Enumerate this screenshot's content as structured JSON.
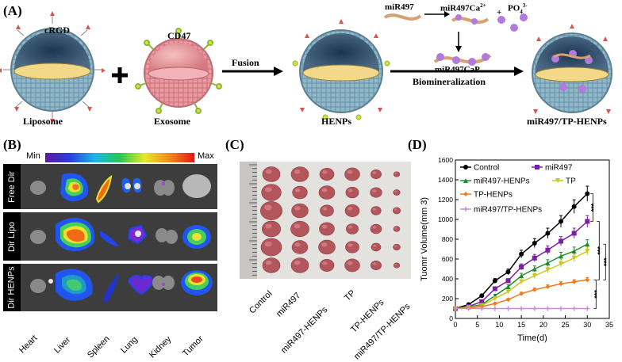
{
  "panelA": {
    "label": "(A)",
    "crgd": "cRGD",
    "cd47": "CD47",
    "liposome": "Liposome",
    "exosome": "Exosome",
    "fusion": "Fusion",
    "henps": "HENPs",
    "mir497": "miR497",
    "mir497ca": "miR497Ca",
    "ca_sup": "2+",
    "plus": "+",
    "po4": "PO",
    "po4_sub": "4",
    "po4_sup": "3-",
    "mir497cap": "miR497CaP",
    "biomineralization": "Biomineralization",
    "final": "miR497/TP-HENPs"
  },
  "panelB": {
    "label": "(B)",
    "scale_min": "Min",
    "scale_max": "Max",
    "rows": [
      "Free Dir",
      "Dir Lipo",
      "Dir HENPs"
    ],
    "organs": [
      "Heart",
      "Liver",
      "Spleen",
      "Lung",
      "Kidney",
      "Tumor"
    ]
  },
  "panelC": {
    "label": "(C)",
    "groups": [
      "Control",
      "miR497",
      "miR497-HENPs",
      "TP",
      "TP-HENPs",
      "miR497/TP-HENPs"
    ]
  },
  "panelD": {
    "label": "(D)",
    "significance": [
      "***",
      "***",
      "***",
      "***"
    ]
  },
  "colors": {
    "control": "#000000",
    "mir497": "#7b1fa2",
    "mir497_henps": "#1e8c2e",
    "tp": "#c8c81e",
    "tp_henps": "#f07c1e",
    "mir497_tp_henps": "#c98ed8"
  },
  "chart_data": {
    "type": "line",
    "xlabel": "Time(d)",
    "ylabel": "Tuomr Volume(mm 3)",
    "xlim": [
      0,
      35
    ],
    "ylim": [
      0,
      1600
    ],
    "xticks": [
      0,
      5,
      10,
      15,
      20,
      25,
      30,
      35
    ],
    "yticks": [
      0,
      200,
      400,
      600,
      800,
      1000,
      1200,
      1400,
      1600
    ],
    "x": [
      0,
      3,
      6,
      9,
      12,
      15,
      18,
      21,
      24,
      27,
      30
    ],
    "series": [
      {
        "name": "Control",
        "marker": "circle",
        "color": "#000000",
        "values": [
          100,
          140,
          230,
          380,
          470,
          650,
          760,
          860,
          980,
          1130,
          1260
        ]
      },
      {
        "name": "miR497",
        "marker": "square",
        "color": "#7b1fa2",
        "values": [
          100,
          120,
          170,
          300,
          380,
          520,
          610,
          690,
          780,
          860,
          980
        ]
      },
      {
        "name": "miR497-HENPs",
        "marker": "triangle",
        "color": "#1e8c2e",
        "values": [
          100,
          115,
          140,
          230,
          320,
          430,
          500,
          560,
          630,
          680,
          750
        ]
      },
      {
        "name": "TP",
        "marker": "triangle-down",
        "color": "#c8c81e",
        "values": [
          100,
          110,
          130,
          200,
          270,
          370,
          430,
          490,
          550,
          610,
          680
        ]
      },
      {
        "name": "TP-HENPs",
        "marker": "diamond",
        "color": "#f07c1e",
        "values": [
          100,
          105,
          120,
          150,
          190,
          250,
          290,
          320,
          350,
          370,
          390
        ]
      },
      {
        "name": "miR497/TP-HENPs",
        "marker": "cross",
        "color": "#c98ed8",
        "values": [
          100,
          100,
          100,
          100,
          100,
          100,
          100,
          100,
          100,
          100,
          100
        ]
      }
    ]
  }
}
